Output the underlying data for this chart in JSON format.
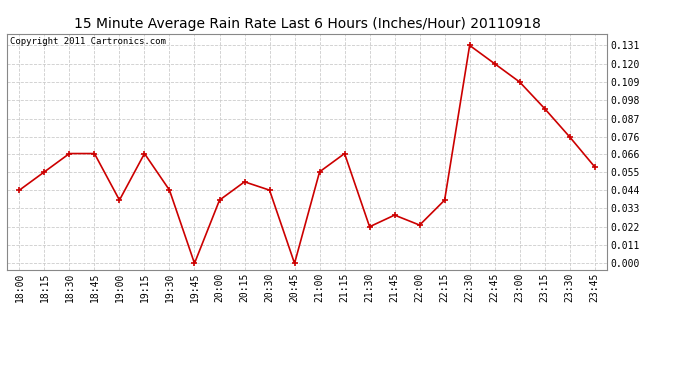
{
  "title": "15 Minute Average Rain Rate Last 6 Hours (Inches/Hour) 20110918",
  "copyright": "Copyright 2011 Cartronics.com",
  "x_labels": [
    "18:00",
    "18:15",
    "18:30",
    "18:45",
    "19:00",
    "19:15",
    "19:30",
    "19:45",
    "20:00",
    "20:15",
    "20:30",
    "20:45",
    "21:00",
    "21:15",
    "21:30",
    "21:45",
    "22:00",
    "22:15",
    "22:30",
    "22:45",
    "23:00",
    "23:15",
    "23:30",
    "23:45"
  ],
  "y_values": [
    0.044,
    0.055,
    0.066,
    0.066,
    0.038,
    0.066,
    0.044,
    0.0,
    0.038,
    0.049,
    0.044,
    0.0,
    0.055,
    0.066,
    0.022,
    0.029,
    0.023,
    0.038,
    0.131,
    0.12,
    0.109,
    0.093,
    0.076,
    0.058
  ],
  "y_ticks": [
    0.0,
    0.011,
    0.022,
    0.033,
    0.044,
    0.055,
    0.066,
    0.076,
    0.087,
    0.098,
    0.109,
    0.12,
    0.131
  ],
  "line_color": "#cc0000",
  "marker_color": "#cc0000",
  "background_color": "#ffffff",
  "grid_color": "#cccccc",
  "title_fontsize": 10,
  "copyright_fontsize": 6.5,
  "tick_fontsize": 7,
  "ylim": [
    -0.004,
    0.138
  ]
}
